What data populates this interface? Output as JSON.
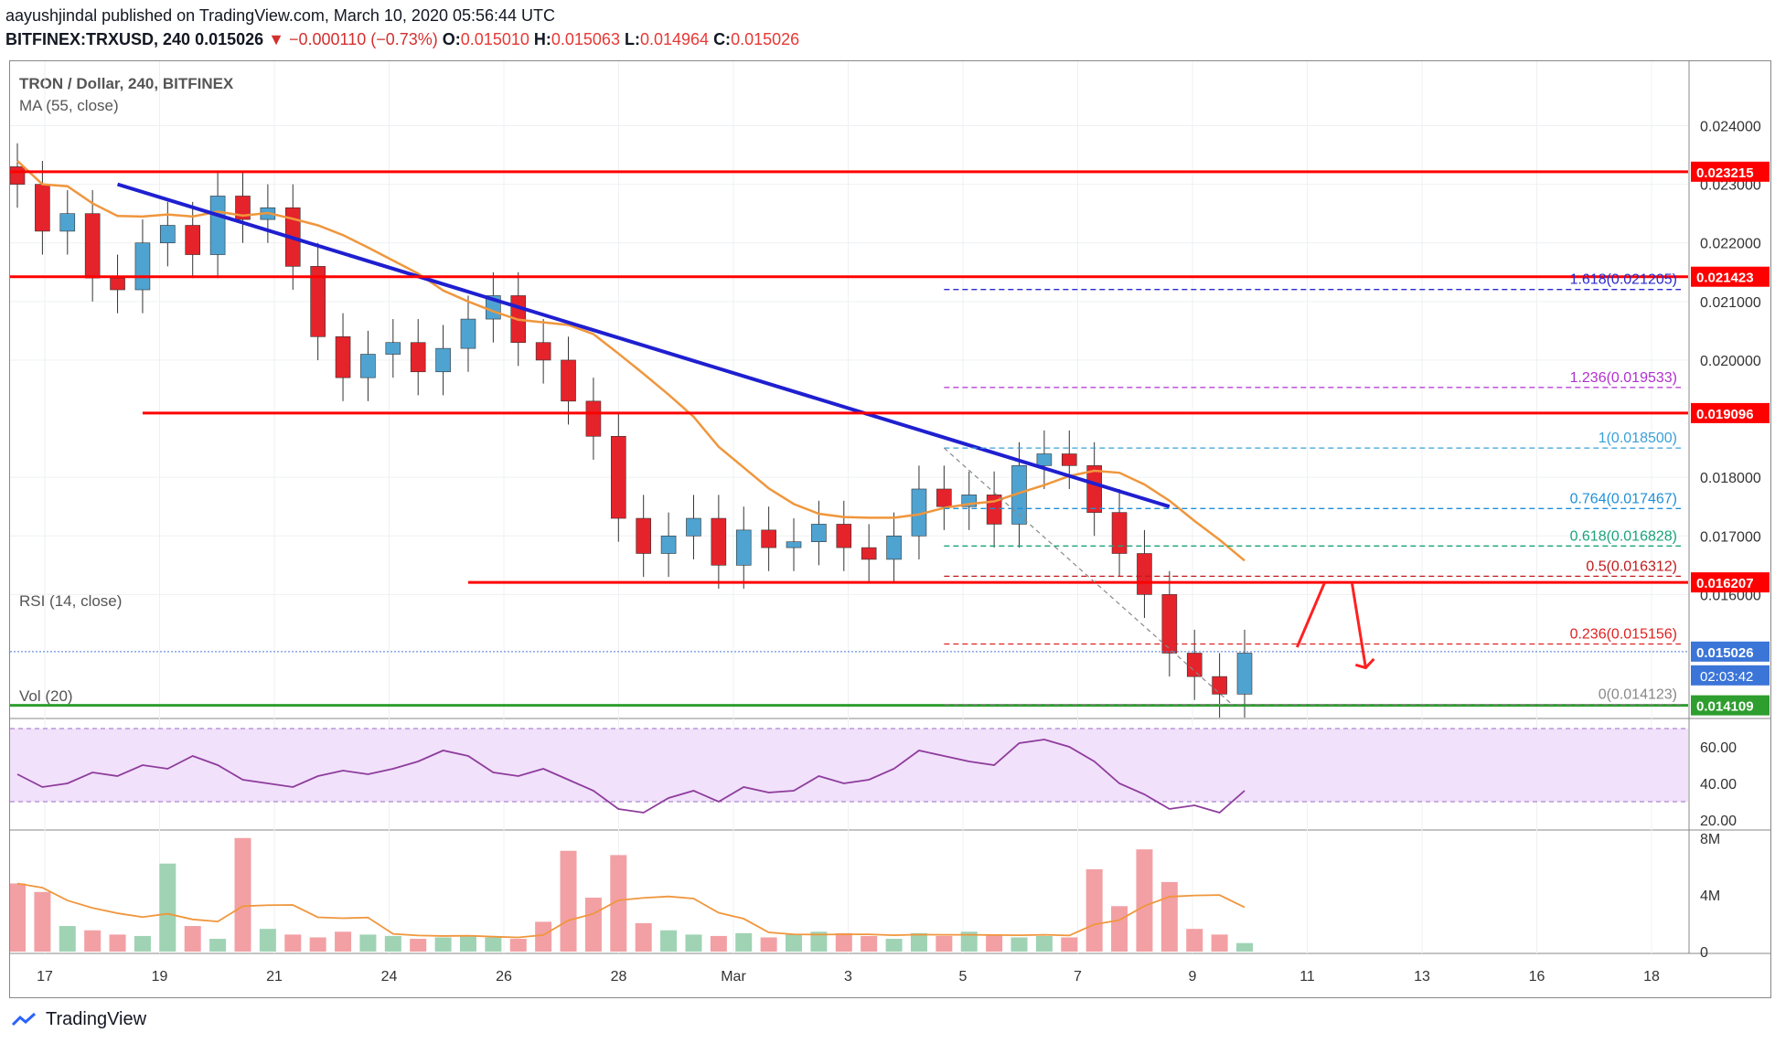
{
  "header": {
    "line1": "aayushjindal published on TradingView.com, March 10, 2020 05:56:44 UTC",
    "symbol": "BITFINEX:TRXUSD, 240",
    "last": "0.015026",
    "change": "▼ −0.000110 (−0.73%)",
    "o_label": "O:",
    "o": "0.015010",
    "h_label": "H:",
    "h": "0.015063",
    "l_label": "L:",
    "l": "0.014964",
    "c_label": "C:",
    "c": "0.015026"
  },
  "legend": {
    "title": "TRON / Dollar, 240, BITFINEX",
    "ma": "MA (55, close)",
    "rsi": "RSI (14, close)",
    "vol": "Vol (20)"
  },
  "footer": {
    "brand": "TradingView"
  },
  "colors": {
    "up": "#4fa3d1",
    "down": "#e5232b",
    "ma": "#f0963c",
    "trend": "#1f1fd0",
    "level": "#ff0000",
    "support": "#2e9e2e",
    "rsi": "#8e3c9c",
    "rsiband": "#f1e1fb"
  },
  "chart_data": [
    {
      "type": "candlestick",
      "title": "TRON / Dollar, 240, BITFINEX",
      "x_ticks": [
        "17",
        "19",
        "21",
        "24",
        "26",
        "28",
        "Mar",
        "3",
        "5",
        "7",
        "9",
        "11",
        "13",
        "16",
        "18"
      ],
      "y_ticks": [
        "0.024000",
        "0.023000",
        "0.022000",
        "0.021000",
        "0.020000",
        "0.018000",
        "0.017000",
        "0.016000"
      ],
      "ylim": [
        0.0139,
        0.0251
      ],
      "close_series": [
        0.023,
        0.0222,
        0.0225,
        0.0214,
        0.0212,
        0.022,
        0.0223,
        0.0218,
        0.0228,
        0.0224,
        0.0226,
        0.0216,
        0.0204,
        0.0197,
        0.0201,
        0.0203,
        0.0198,
        0.0202,
        0.0207,
        0.0211,
        0.0203,
        0.02,
        0.0193,
        0.0187,
        0.0173,
        0.0167,
        0.017,
        0.0173,
        0.0165,
        0.0171,
        0.0168,
        0.0169,
        0.0172,
        0.0168,
        0.0166,
        0.017,
        0.0178,
        0.0175,
        0.0177,
        0.0172,
        0.0182,
        0.0184,
        0.0182,
        0.0174,
        0.0167,
        0.016,
        0.015,
        0.0146,
        0.0143,
        0.015
      ],
      "horizontal_levels": [
        "0.023215",
        "0.021423",
        "0.019096",
        "0.016207",
        "0.015026",
        "0.014109"
      ],
      "fib_levels": [
        {
          "label": "1.618(0.021205)",
          "value": 0.021205,
          "color": "#2a2ad0"
        },
        {
          "label": "1.236(0.019533)",
          "value": 0.019533,
          "color": "#b02fd0"
        },
        {
          "label": "1(0.018500)",
          "value": 0.0185,
          "color": "#3aa0d8"
        },
        {
          "label": "0.764(0.017467)",
          "value": 0.017467,
          "color": "#1e90d8"
        },
        {
          "label": "0.618(0.016828)",
          "value": 0.016828,
          "color": "#1aa37a"
        },
        {
          "label": "0.5(0.016312)",
          "value": 0.016312,
          "color": "#c01a1a"
        },
        {
          "label": "0.236(0.015156)",
          "value": 0.015156,
          "color": "#e02020"
        },
        {
          "label": "0(0.014123)",
          "value": 0.014123,
          "color": "#888888"
        }
      ],
      "countdown": "02:03:42"
    },
    {
      "type": "line",
      "title": "RSI (14, close)",
      "y_ticks": [
        "60.00",
        "40.00",
        "20.00"
      ],
      "ylim": [
        15,
        75
      ],
      "values": [
        45,
        38,
        40,
        46,
        44,
        50,
        48,
        55,
        50,
        42,
        40,
        38,
        44,
        47,
        45,
        48,
        52,
        58,
        55,
        46,
        44,
        48,
        42,
        36,
        26,
        24,
        32,
        36,
        30,
        38,
        35,
        36,
        44,
        40,
        42,
        48,
        58,
        55,
        52,
        50,
        62,
        64,
        60,
        52,
        40,
        34,
        26,
        28,
        24,
        36
      ]
    },
    {
      "type": "bar",
      "title": "Vol (20)",
      "y_ticks": [
        "8M",
        "4M",
        "0"
      ],
      "ylim": [
        0,
        8.5
      ],
      "values": [
        4.8,
        4.2,
        1.8,
        1.5,
        1.2,
        1.1,
        6.2,
        1.8,
        0.9,
        8.0,
        1.6,
        1.2,
        1.0,
        1.4,
        1.2,
        1.1,
        0.9,
        1.0,
        1.1,
        1.0,
        0.9,
        2.1,
        7.1,
        3.8,
        6.8,
        2.0,
        1.5,
        1.2,
        1.1,
        1.3,
        1.0,
        1.2,
        1.4,
        1.3,
        1.1,
        0.9,
        1.3,
        1.1,
        1.4,
        1.2,
        1.0,
        1.1,
        1.0,
        5.8,
        3.2,
        7.2,
        4.9,
        1.6,
        1.2,
        0.6
      ]
    }
  ]
}
